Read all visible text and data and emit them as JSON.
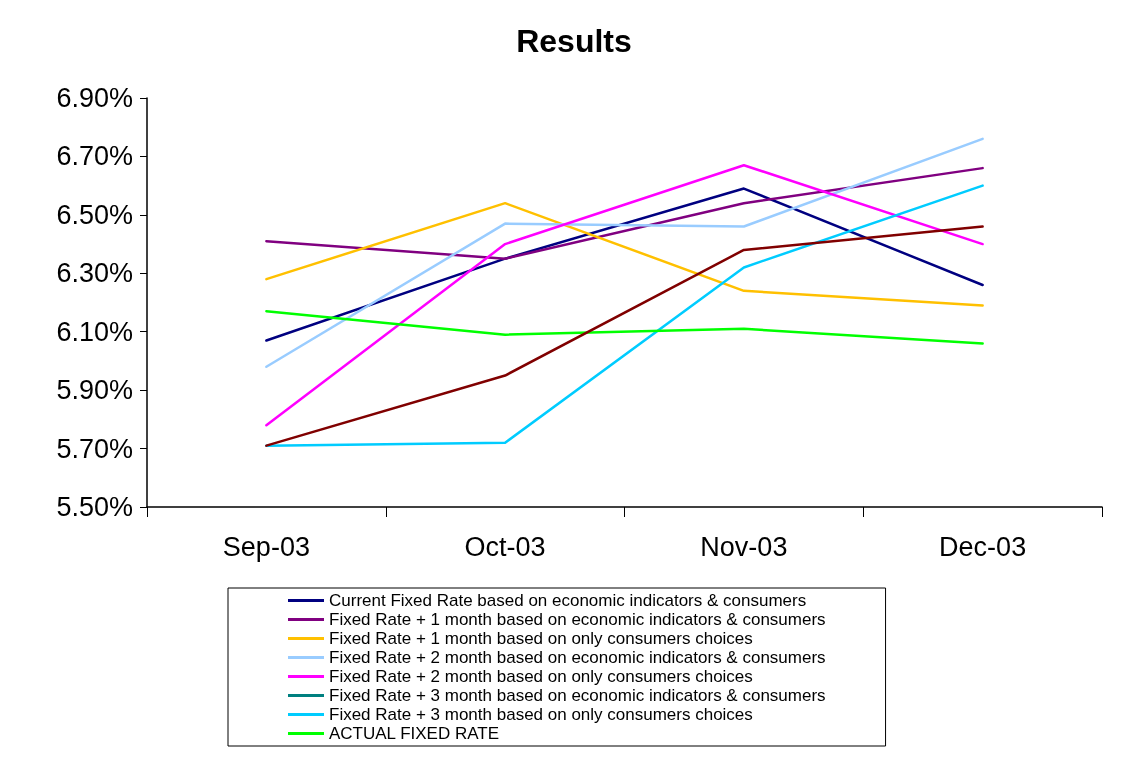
{
  "chart_data": {
    "type": "line",
    "title": "Results",
    "categories": [
      "Sep-03",
      "Oct-03",
      "Nov-03",
      "Dec-03"
    ],
    "series": [
      {
        "name": "Current Fixed Rate based on economic indicators & consumers",
        "color": "#000080",
        "values": [
          6.07,
          6.35,
          6.59,
          6.26
        ]
      },
      {
        "name": "Fixed Rate + 1 month based on economic indicators & consumers",
        "color": "#800080",
        "values": [
          6.41,
          6.35,
          6.54,
          6.66
        ]
      },
      {
        "name": "Fixed Rate + 1 month based on only consumers choices",
        "color": "#ffc000",
        "values": [
          6.28,
          6.54,
          6.24,
          6.19
        ]
      },
      {
        "name": "Fixed Rate + 2 month based on economic indicators & consumers",
        "color": "#99ccff",
        "values": [
          5.98,
          6.47,
          6.46,
          6.76
        ]
      },
      {
        "name": "Fixed Rate + 2 month based on only consumers choices",
        "color": "#ff00ff",
        "values": [
          5.78,
          6.4,
          6.67,
          6.4
        ]
      },
      {
        "name": "Fixed Rate + 3 month based on economic indicators & consumers",
        "color": "#008080",
        "values": [
          null,
          null,
          null,
          null
        ]
      },
      {
        "name": "Fixed Rate + 3 month based on only consumers choices",
        "color": "#00ccff",
        "values": [
          5.71,
          5.72,
          6.32,
          6.6
        ]
      },
      {
        "name": "ACTUAL FIXED RATE",
        "color": "#00ff00",
        "values": [
          6.17,
          6.09,
          6.11,
          6.06
        ]
      },
      {
        "color": "#800000",
        "values": [
          5.71,
          5.95,
          6.38,
          6.46
        ]
      }
    ],
    "ylim": [
      5.5,
      6.9
    ],
    "yticks": [
      {
        "value": 5.5,
        "label": "5.50%"
      },
      {
        "value": 5.7,
        "label": "5.70%"
      },
      {
        "value": 5.9,
        "label": "5.90%"
      },
      {
        "value": 6.1,
        "label": "6.10%"
      },
      {
        "value": 6.3,
        "label": "6.30%"
      },
      {
        "value": 6.5,
        "label": "6.50%"
      },
      {
        "value": 6.7,
        "label": "6.70%"
      },
      {
        "value": 6.9,
        "label": "6.90%"
      }
    ],
    "grid": false,
    "legend": "bottom",
    "marker": "none"
  }
}
